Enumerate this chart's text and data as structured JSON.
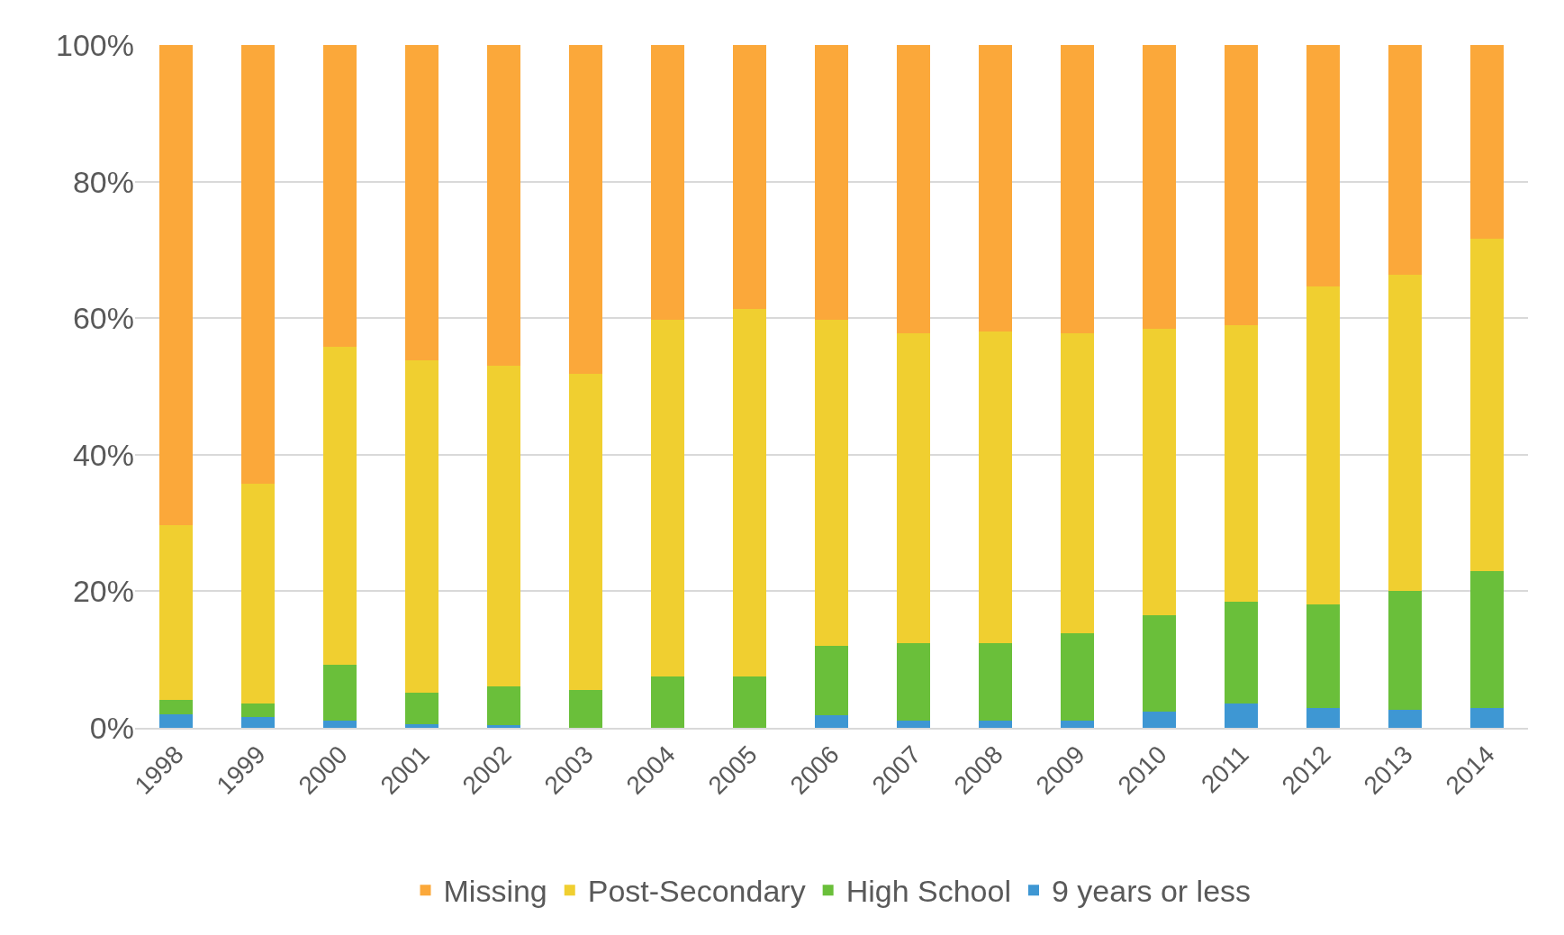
{
  "chart_data": {
    "type": "bar",
    "stacked": true,
    "categories": [
      "1998",
      "1999",
      "2000",
      "2001",
      "2002",
      "2003",
      "2004",
      "2005",
      "2006",
      "2007",
      "2008",
      "2009",
      "2010",
      "2011",
      "2012",
      "2013",
      "2014"
    ],
    "series": [
      {
        "name": "9 years or less",
        "color": "#3e97d3",
        "values": [
          2.0,
          1.6,
          1.1,
          0.5,
          0.4,
          0,
          0,
          0,
          1.9,
          1.1,
          1.1,
          1.1,
          2.4,
          3.5,
          2.9,
          2.7,
          2.9
        ]
      },
      {
        "name": "High School",
        "color": "#6abf3a",
        "values": [
          2.1,
          2.0,
          8.1,
          4.7,
          5.7,
          5.5,
          7.5,
          7.5,
          10.1,
          11.3,
          11.3,
          12.7,
          14.1,
          15.0,
          15.2,
          17.4,
          20.0
        ]
      },
      {
        "name": "Post-Secondary",
        "color": "#f0cf30",
        "values": [
          25.6,
          32.1,
          46.6,
          48.6,
          46.9,
          46.4,
          52.2,
          53.9,
          47.7,
          45.4,
          45.7,
          44.0,
          41.9,
          40.5,
          46.5,
          46.2,
          48.7
        ]
      },
      {
        "name": "Missing",
        "color": "#fba83a",
        "values": [
          70.3,
          64.3,
          44.2,
          46.2,
          47.0,
          48.1,
          40.3,
          38.6,
          40.3,
          42.2,
          41.9,
          42.2,
          41.6,
          41.0,
          35.4,
          33.7,
          28.4
        ]
      }
    ],
    "ylim": [
      0,
      100
    ],
    "yticks": [
      {
        "value": 0,
        "label": "0%"
      },
      {
        "value": 20,
        "label": "20%"
      },
      {
        "value": 40,
        "label": "40%"
      },
      {
        "value": 60,
        "label": "60%"
      },
      {
        "value": 80,
        "label": "80%"
      },
      {
        "value": 100,
        "label": "100%"
      }
    ],
    "grid": "y",
    "legend": "bottom"
  }
}
